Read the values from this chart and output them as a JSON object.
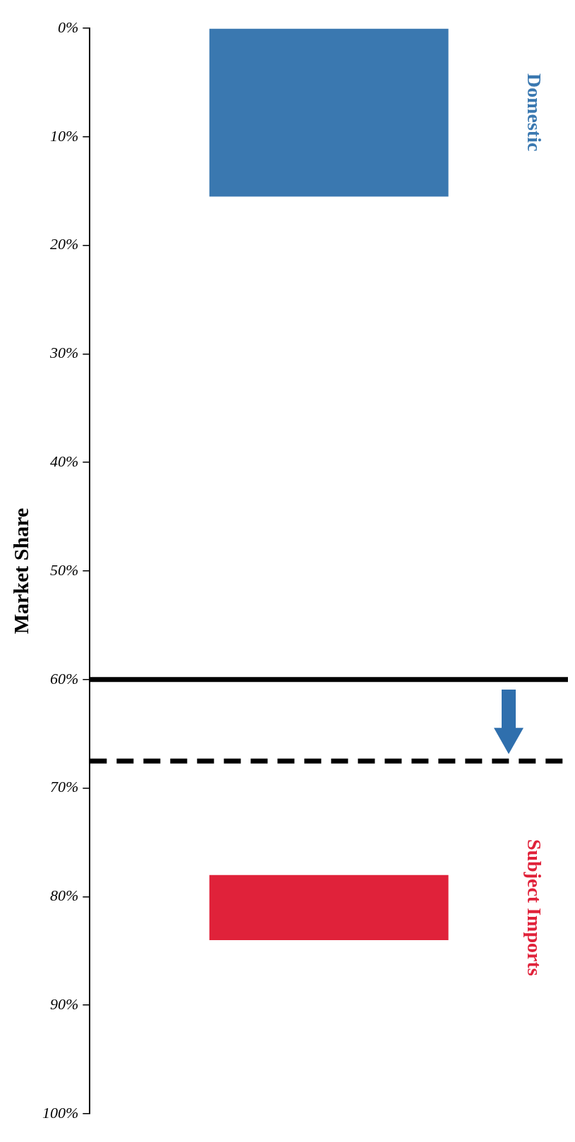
{
  "chart_data": {
    "type": "bar",
    "categories": [
      null
    ],
    "ylabel": "Market Share",
    "ylim": [
      100,
      0
    ],
    "yticks": [
      {
        "value": 0,
        "label": "0%"
      },
      {
        "value": 10,
        "label": "10%"
      },
      {
        "value": 20,
        "label": "20%"
      },
      {
        "value": 30,
        "label": "30%"
      },
      {
        "value": 40,
        "label": "40%"
      },
      {
        "value": 50,
        "label": "50%"
      },
      {
        "value": 60,
        "label": "60%"
      },
      {
        "value": 70,
        "label": "70%"
      },
      {
        "value": 80,
        "label": "80%"
      },
      {
        "value": 90,
        "label": "90%"
      },
      {
        "value": 100,
        "label": "100%"
      }
    ],
    "series": [
      {
        "name": "Domestic",
        "color": "#3a78b0",
        "values": [
          15.5
        ],
        "base": [
          0
        ]
      },
      {
        "name": "Subject Imports",
        "color": "#e0223a",
        "values": [
          6
        ],
        "base": [
          78
        ]
      }
    ],
    "ref_lines": [
      {
        "axis": "y",
        "value": 60,
        "color": "#000000",
        "line_style": "solid"
      },
      {
        "axis": "y",
        "value": 67.5,
        "color": "#000000",
        "line_style": "dashed"
      }
    ],
    "grid": false
  }
}
